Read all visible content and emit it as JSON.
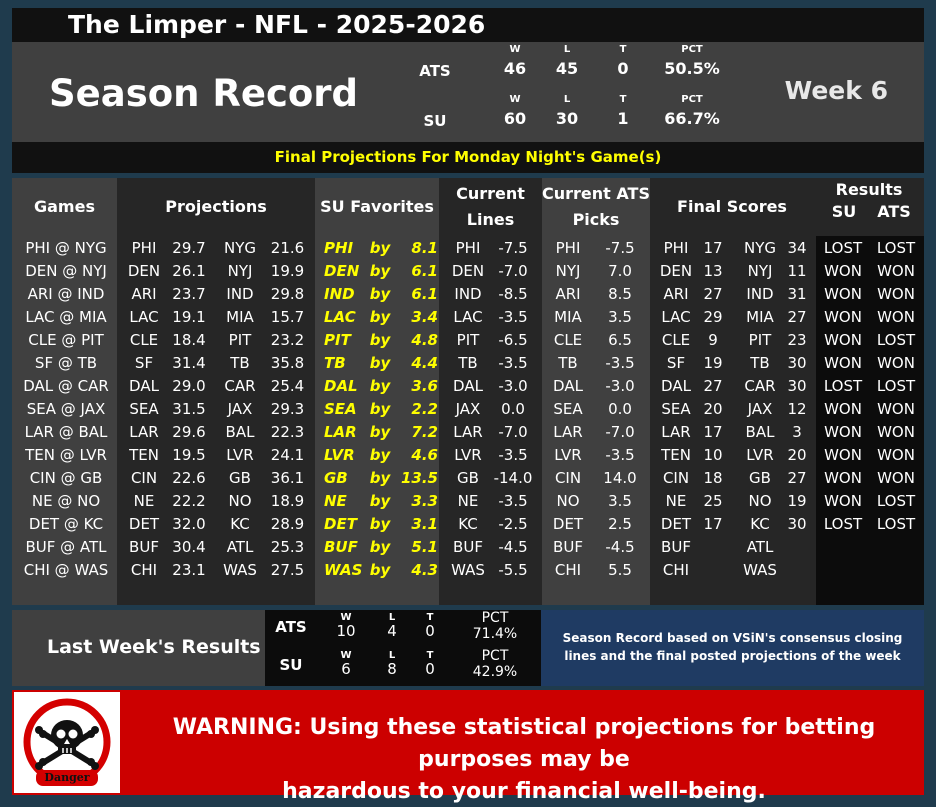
{
  "title": "The Limper - NFL - 2025-2026",
  "season_record": {
    "title": "Season Record",
    "week": "Week 6",
    "ats": {
      "label": "ATS",
      "w_h": "W",
      "l_h": "L",
      "t_h": "T",
      "pct_h": "PCT",
      "w": "46",
      "l": "45",
      "t": "0",
      "pct": "50.5%"
    },
    "su": {
      "label": "SU",
      "w_h": "W",
      "l_h": "L",
      "t_h": "T",
      "pct_h": "PCT",
      "w": "60",
      "l": "30",
      "t": "1",
      "pct": "66.7%"
    }
  },
  "final_projections_label": "Final Projections For Monday Night's Game(s)",
  "headers": {
    "games": "Games",
    "projections": "Projections",
    "su_favorites": "SU Favorites",
    "current_lines_1": "Current",
    "current_lines_2": "Lines",
    "current_ats_1": "Current ATS",
    "current_ats_2": "Picks",
    "final_scores": "Final Scores",
    "results": "Results",
    "results_su": "SU",
    "results_ats": "ATS"
  },
  "rows": [
    {
      "game": "PHI @ NYG",
      "p1t": "PHI",
      "p1": "29.7",
      "p2t": "NYG",
      "p2": "21.6",
      "fav": "PHI",
      "by": "by",
      "fv": "8.1",
      "lt": "PHI",
      "lv": "-7.5",
      "pt": "PHI",
      "pv": "-7.5",
      "s1t": "PHI",
      "s1": "17",
      "s2t": "NYG",
      "s2": "34",
      "su": "LOST",
      "ats": "LOST"
    },
    {
      "game": "DEN @ NYJ",
      "p1t": "DEN",
      "p1": "26.1",
      "p2t": "NYJ",
      "p2": "19.9",
      "fav": "DEN",
      "by": "by",
      "fv": "6.1",
      "lt": "DEN",
      "lv": "-7.0",
      "pt": "NYJ",
      "pv": "7.0",
      "s1t": "DEN",
      "s1": "13",
      "s2t": "NYJ",
      "s2": "11",
      "su": "WON",
      "ats": "WON"
    },
    {
      "game": "ARI @ IND",
      "p1t": "ARI",
      "p1": "23.7",
      "p2t": "IND",
      "p2": "29.8",
      "fav": "IND",
      "by": "by",
      "fv": "6.1",
      "lt": "IND",
      "lv": "-8.5",
      "pt": "ARI",
      "pv": "8.5",
      "s1t": "ARI",
      "s1": "27",
      "s2t": "IND",
      "s2": "31",
      "su": "WON",
      "ats": "WON"
    },
    {
      "game": "LAC @ MIA",
      "p1t": "LAC",
      "p1": "19.1",
      "p2t": "MIA",
      "p2": "15.7",
      "fav": "LAC",
      "by": "by",
      "fv": "3.4",
      "lt": "LAC",
      "lv": "-3.5",
      "pt": "MIA",
      "pv": "3.5",
      "s1t": "LAC",
      "s1": "29",
      "s2t": "MIA",
      "s2": "27",
      "su": "WON",
      "ats": "WON"
    },
    {
      "game": "CLE @ PIT",
      "p1t": "CLE",
      "p1": "18.4",
      "p2t": "PIT",
      "p2": "23.2",
      "fav": "PIT",
      "by": "by",
      "fv": "4.8",
      "lt": "PIT",
      "lv": "-6.5",
      "pt": "CLE",
      "pv": "6.5",
      "s1t": "CLE",
      "s1": "9",
      "s2t": "PIT",
      "s2": "23",
      "su": "WON",
      "ats": "LOST"
    },
    {
      "game": "SF @ TB",
      "p1t": "SF",
      "p1": "31.4",
      "p2t": "TB",
      "p2": "35.8",
      "fav": "TB",
      "by": "by",
      "fv": "4.4",
      "lt": "TB",
      "lv": "-3.5",
      "pt": "TB",
      "pv": "-3.5",
      "s1t": "SF",
      "s1": "19",
      "s2t": "TB",
      "s2": "30",
      "su": "WON",
      "ats": "WON"
    },
    {
      "game": "DAL @ CAR",
      "p1t": "DAL",
      "p1": "29.0",
      "p2t": "CAR",
      "p2": "25.4",
      "fav": "DAL",
      "by": "by",
      "fv": "3.6",
      "lt": "DAL",
      "lv": "-3.0",
      "pt": "DAL",
      "pv": "-3.0",
      "s1t": "DAL",
      "s1": "27",
      "s2t": "CAR",
      "s2": "30",
      "su": "LOST",
      "ats": "LOST"
    },
    {
      "game": "SEA @ JAX",
      "p1t": "SEA",
      "p1": "31.5",
      "p2t": "JAX",
      "p2": "29.3",
      "fav": "SEA",
      "by": "by",
      "fv": "2.2",
      "lt": "JAX",
      "lv": "0.0",
      "pt": "SEA",
      "pv": "0.0",
      "s1t": "SEA",
      "s1": "20",
      "s2t": "JAX",
      "s2": "12",
      "su": "WON",
      "ats": "WON"
    },
    {
      "game": "LAR @ BAL",
      "p1t": "LAR",
      "p1": "29.6",
      "p2t": "BAL",
      "p2": "22.3",
      "fav": "LAR",
      "by": "by",
      "fv": "7.2",
      "lt": "LAR",
      "lv": "-7.0",
      "pt": "LAR",
      "pv": "-7.0",
      "s1t": "LAR",
      "s1": "17",
      "s2t": "BAL",
      "s2": "3",
      "su": "WON",
      "ats": "WON"
    },
    {
      "game": "TEN @ LVR",
      "p1t": "TEN",
      "p1": "19.5",
      "p2t": "LVR",
      "p2": "24.1",
      "fav": "LVR",
      "by": "by",
      "fv": "4.6",
      "lt": "LVR",
      "lv": "-3.5",
      "pt": "LVR",
      "pv": "-3.5",
      "s1t": "TEN",
      "s1": "10",
      "s2t": "LVR",
      "s2": "20",
      "su": "WON",
      "ats": "WON"
    },
    {
      "game": "CIN @ GB",
      "p1t": "CIN",
      "p1": "22.6",
      "p2t": "GB",
      "p2": "36.1",
      "fav": "GB",
      "by": "by",
      "fv": "13.5",
      "lt": "GB",
      "lv": "-14.0",
      "pt": "CIN",
      "pv": "14.0",
      "s1t": "CIN",
      "s1": "18",
      "s2t": "GB",
      "s2": "27",
      "su": "WON",
      "ats": "WON"
    },
    {
      "game": "NE @ NO",
      "p1t": "NE",
      "p1": "22.2",
      "p2t": "NO",
      "p2": "18.9",
      "fav": "NE",
      "by": "by",
      "fv": "3.3",
      "lt": "NE",
      "lv": "-3.5",
      "pt": "NO",
      "pv": "3.5",
      "s1t": "NE",
      "s1": "25",
      "s2t": "NO",
      "s2": "19",
      "su": "WON",
      "ats": "LOST"
    },
    {
      "game": "DET @ KC",
      "p1t": "DET",
      "p1": "32.0",
      "p2t": "KC",
      "p2": "28.9",
      "fav": "DET",
      "by": "by",
      "fv": "3.1",
      "lt": "KC",
      "lv": "-2.5",
      "pt": "DET",
      "pv": "2.5",
      "s1t": "DET",
      "s1": "17",
      "s2t": "KC",
      "s2": "30",
      "su": "LOST",
      "ats": "LOST"
    },
    {
      "game": "BUF @ ATL",
      "p1t": "BUF",
      "p1": "30.4",
      "p2t": "ATL",
      "p2": "25.3",
      "fav": "BUF",
      "by": "by",
      "fv": "5.1",
      "lt": "BUF",
      "lv": "-4.5",
      "pt": "BUF",
      "pv": "-4.5",
      "s1t": "BUF",
      "s1": "",
      "s2t": "ATL",
      "s2": "",
      "su": "",
      "ats": ""
    },
    {
      "game": "CHI @ WAS",
      "p1t": "CHI",
      "p1": "23.1",
      "p2t": "WAS",
      "p2": "27.5",
      "fav": "WAS",
      "by": "by",
      "fv": "4.3",
      "lt": "WAS",
      "lv": "-5.5",
      "pt": "CHI",
      "pv": "5.5",
      "s1t": "CHI",
      "s1": "",
      "s2t": "WAS",
      "s2": "",
      "su": "",
      "ats": ""
    }
  ],
  "last_week": {
    "title": "Last Week's Results",
    "ats": {
      "label": "ATS",
      "w_h": "W",
      "l_h": "L",
      "t_h": "T",
      "pct_h": "PCT",
      "w": "10",
      "l": "4",
      "t": "0",
      "pct": "71.4%"
    },
    "su": {
      "label": "SU",
      "w_h": "W",
      "l_h": "L",
      "t_h": "T",
      "pct_h": "PCT",
      "w": "6",
      "l": "8",
      "t": "0",
      "pct": "42.9%"
    }
  },
  "note": "Season Record based on VSiN's consensus closing lines and the final posted projections of the week",
  "warning": {
    "icon": "skull-crossbones-danger-icon",
    "icon_label": "Danger",
    "text_line1": "WARNING: Using these statistical projections for betting purposes may be",
    "text_line2": "hazardous to your financial well-being."
  },
  "colors": {
    "yellow": "#ffff00",
    "red": "#cc0000",
    "navy": "#1f3b63",
    "panel": "#404040"
  }
}
